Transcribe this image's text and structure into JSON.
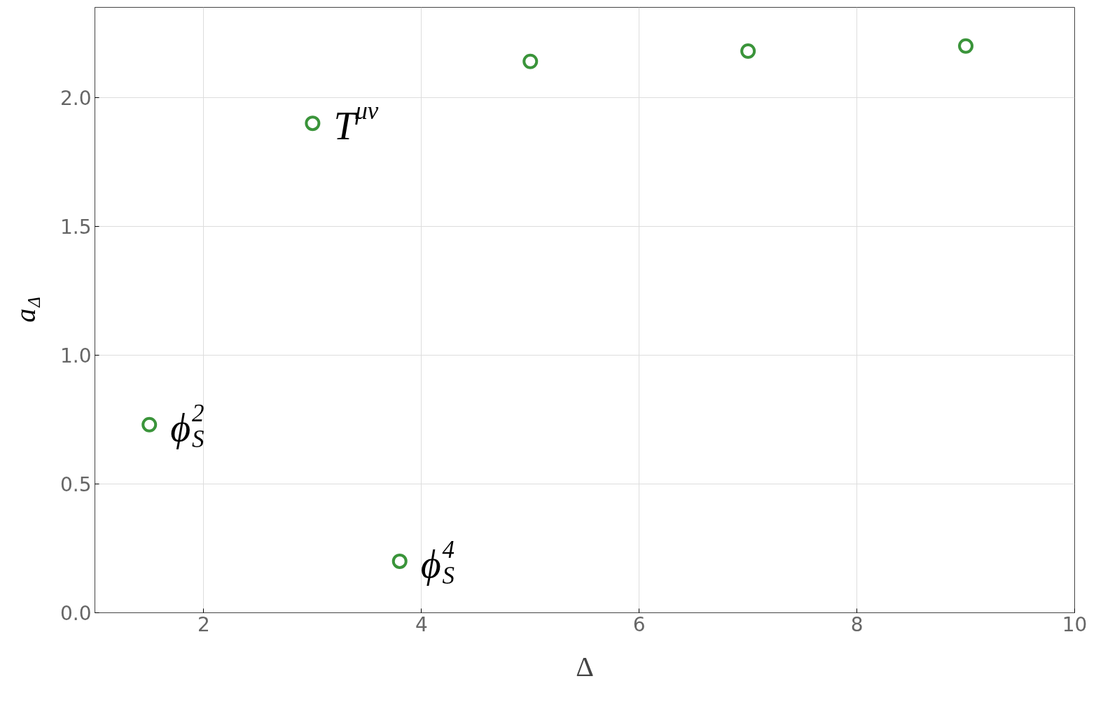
{
  "chart_data": {
    "type": "scatter",
    "x": [
      1.5,
      3.0,
      3.8,
      5.0,
      7.0,
      9.0
    ],
    "values": [
      0.73,
      1.9,
      0.2,
      2.14,
      2.18,
      2.2
    ],
    "color": "#3a943a",
    "marker": "circle",
    "xlabel": "Δ",
    "ylabel": "a$_{Δ}$",
    "xlim": [
      1,
      10
    ],
    "ylim": [
      0,
      2.35
    ],
    "xticks": [
      2,
      4,
      6,
      8,
      10
    ],
    "yticks": [
      {
        "value": 0,
        "label": "0.0"
      },
      {
        "value": 0.5,
        "label": "0.5"
      },
      {
        "value": 1,
        "label": "1.0"
      },
      {
        "value": 1.5,
        "label": "1.5"
      },
      {
        "value": 2,
        "label": "2.0"
      }
    ],
    "grid": true,
    "annotations": [
      {
        "text": "ϕ$_{S}$$^{2}$",
        "x": 1.5,
        "y": 0.73
      },
      {
        "text": "T$^{μν}$",
        "x": 3.0,
        "y": 1.9
      },
      {
        "text": "ϕ$_{S}$$^{4}$",
        "x": 3.8,
        "y": 0.2
      }
    ]
  }
}
